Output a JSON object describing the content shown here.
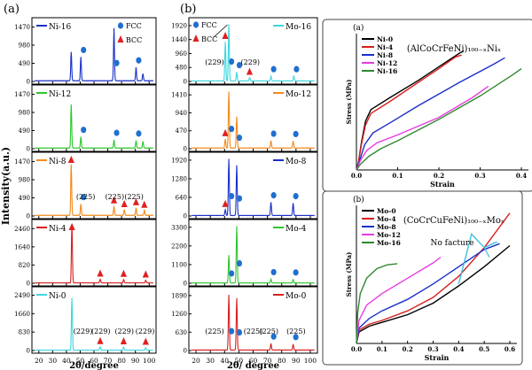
{
  "chart_data": [
    {
      "id": "xrd-ni",
      "type": "line",
      "panel_label": "(a)",
      "xlabel": "2θ/degree",
      "ylabel": "Intensity(a.u.)",
      "xlim": [
        15,
        105
      ],
      "xticks": [
        20,
        30,
        40,
        50,
        60,
        70,
        80,
        90,
        100
      ],
      "legend_fcc": "FCC",
      "legend_bcc": "BCC",
      "colors": {
        "Ni-16": "#1a2fc9",
        "Ni-12": "#2ec72e",
        "Ni-8": "#f28a1a",
        "Ni-4": "#d62020",
        "Ni-0": "#3dd6dd"
      },
      "subplots": [
        {
          "name": "Ni-16",
          "ylim": [
            0,
            1650
          ],
          "yticks": [
            0,
            490,
            980,
            1470
          ],
          "peaks": [
            [
              43.5,
              780
            ],
            [
              50.5,
              640
            ],
            [
              74.5,
              1420
            ],
            [
              90.5,
              360
            ],
            [
              95.5,
              190
            ]
          ],
          "fcc_marks": [
            50.5,
            74.5,
            90.5
          ],
          "bcc_marks": [],
          "annotations": []
        },
        {
          "name": "Ni-12",
          "ylim": [
            0,
            1650
          ],
          "yticks": [
            0,
            490,
            980,
            1470
          ],
          "peaks": [
            [
              43.5,
              1180
            ],
            [
              50.5,
              300
            ],
            [
              74.5,
              220
            ],
            [
              90.5,
              200
            ],
            [
              95.5,
              180
            ]
          ],
          "fcc_marks": [
            50.5,
            74.5,
            90.5
          ],
          "bcc_marks": [],
          "annotations": []
        },
        {
          "name": "Ni-8",
          "ylim": [
            0,
            1650
          ],
          "yticks": [
            0,
            490,
            980,
            1470
          ],
          "peaks": [
            [
              43.5,
              1380
            ],
            [
              50.5,
              300
            ],
            [
              74.5,
              250
            ],
            [
              82,
              150
            ],
            [
              90.5,
              200
            ],
            [
              96.5,
              130
            ]
          ],
          "fcc_marks": [
            50.5
          ],
          "bcc_marks": [
            43.5,
            74.5,
            82,
            90.5,
            96.5
          ],
          "annotations": [
            {
              "text": "(225)",
              "x": 54
            },
            {
              "text": "(225)",
              "x": 75
            },
            {
              "text": "(225)",
              "x": 89
            }
          ]
        },
        {
          "name": "Ni-4",
          "ylim": [
            0,
            2750
          ],
          "yticks": [
            0,
            820,
            1640,
            2460
          ],
          "peaks": [
            [
              44,
              2650
            ],
            [
              64.5,
              160
            ],
            [
              81.5,
              150
            ],
            [
              97.5,
              120
            ]
          ],
          "fcc_marks": [],
          "bcc_marks": [
            44,
            64.5,
            81.5,
            97.5
          ],
          "annotations": []
        },
        {
          "name": "Ni-0",
          "ylim": [
            0,
            2750
          ],
          "yticks": [
            0,
            830,
            1660,
            2490
          ],
          "peaks": [
            [
              44,
              2350
            ],
            [
              64.5,
              150
            ],
            [
              81.5,
              140
            ],
            [
              97.5,
              120
            ]
          ],
          "fcc_marks": [],
          "bcc_marks": [
            64.5,
            81.5,
            97.5
          ],
          "annotations": [
            {
              "text": "(229)",
              "x": 52
            },
            {
              "text": "(229)",
              "x": 65
            },
            {
              "text": "(229)",
              "x": 82
            },
            {
              "text": "(229)",
              "x": 97
            }
          ]
        }
      ]
    },
    {
      "id": "xrd-mo",
      "type": "line",
      "panel_label": "(b)",
      "xlabel": "2θ/ degree",
      "xlim": [
        15,
        105
      ],
      "xticks": [
        20,
        30,
        40,
        50,
        60,
        70,
        80,
        90,
        100
      ],
      "legend_fcc": "FCC",
      "legend_bcc": "BCC",
      "colors": {
        "Mo-16": "#3dd6dd",
        "Mo-12": "#f28a1a",
        "Mo-8": "#1a2fc9",
        "Mo-4": "#2ec72e",
        "Mo-0": "#d62020"
      },
      "subplots": [
        {
          "name": "Mo-16",
          "ylim": [
            0,
            2100
          ],
          "yticks": [
            0,
            480,
            960,
            1440,
            1920
          ],
          "peaks": [
            [
              40.5,
              1350
            ],
            [
              43,
              1950
            ],
            [
              48.5,
              300
            ],
            [
              57.5,
              120
            ],
            [
              72.5,
              160
            ],
            [
              88.5,
              160
            ]
          ],
          "fcc_marks": [
            43,
            48.5,
            72.5,
            88.5
          ],
          "bcc_marks": [
            40.5,
            57.5
          ],
          "annotations": [
            {
              "text": "(229)",
              "x": 33
            },
            {
              "text": "(229)",
              "x": 58
            }
          ]
        },
        {
          "name": "Mo-12",
          "ylim": [
            0,
            1600
          ],
          "yticks": [
            0,
            470,
            940,
            1410
          ],
          "peaks": [
            [
              40.5,
              240
            ],
            [
              43,
              1480
            ],
            [
              48.5,
              820
            ],
            [
              72.5,
              190
            ],
            [
              88,
              180
            ]
          ],
          "fcc_marks": [
            43,
            48.5,
            72.5,
            88
          ],
          "bcc_marks": [
            40.5
          ],
          "annotations": []
        },
        {
          "name": "Mo-8",
          "ylim": [
            0,
            2100
          ],
          "yticks": [
            0,
            640,
            1280,
            1920
          ],
          "peaks": [
            [
              40.5,
              200
            ],
            [
              43,
              1950
            ],
            [
              48.5,
              1720
            ],
            [
              72.5,
              450
            ],
            [
              88,
              420
            ]
          ],
          "fcc_marks": [
            43,
            48.5,
            72.5,
            88
          ],
          "bcc_marks": [
            40.5
          ],
          "annotations": []
        },
        {
          "name": "Mo-4",
          "ylim": [
            0,
            3600
          ],
          "yticks": [
            0,
            1100,
            2200,
            3300
          ],
          "peaks": [
            [
              43,
              1650
            ],
            [
              48.5,
              3350
            ],
            [
              72.5,
              220
            ],
            [
              88,
              200
            ]
          ],
          "fcc_marks": [
            43,
            48.5,
            72.5,
            88
          ],
          "bcc_marks": [],
          "annotations": []
        },
        {
          "name": "Mo-0",
          "ylim": [
            0,
            2100
          ],
          "yticks": [
            0,
            630,
            1260,
            1890
          ],
          "peaks": [
            [
              43,
              1900
            ],
            [
              48.5,
              1780
            ],
            [
              72.5,
              220
            ],
            [
              88,
              200
            ]
          ],
          "fcc_marks": [
            43,
            48.5,
            72.5,
            88
          ],
          "bcc_marks": [],
          "annotations": [
            {
              "text": "(225)",
              "x": 33
            },
            {
              "text": "(225)",
              "x": 60
            },
            {
              "text": "(225)",
              "x": 71
            },
            {
              "text": "(225)",
              "x": 90
            }
          ]
        }
      ]
    },
    {
      "id": "stress-ni",
      "type": "line",
      "panel_label": "(a)",
      "title": "(AlCoCrFeNi)₁₀₀₋ₓNiₓ",
      "xlabel": "Strain",
      "ylabel": "Stress (MPa)",
      "xlim": [
        0,
        0.4
      ],
      "xticks": [
        0.0,
        0.1,
        0.2,
        0.3,
        0.4
      ],
      "ylim": [
        0,
        3500
      ],
      "series": [
        {
          "name": "Ni-0",
          "color": "#000000",
          "points": [
            [
              0,
              0
            ],
            [
              0.005,
              200
            ],
            [
              0.012,
              700
            ],
            [
              0.022,
              1250
            ],
            [
              0.035,
              1550
            ],
            [
              0.08,
              1850
            ],
            [
              0.15,
              2300
            ],
            [
              0.2,
              2650
            ],
            [
              0.25,
              3000
            ],
            [
              0.26,
              3050
            ]
          ]
        },
        {
          "name": "Ni-4",
          "color": "#d62020",
          "points": [
            [
              0,
              0
            ],
            [
              0.005,
              200
            ],
            [
              0.012,
              650
            ],
            [
              0.022,
              1150
            ],
            [
              0.035,
              1450
            ],
            [
              0.08,
              1750
            ],
            [
              0.15,
              2250
            ],
            [
              0.2,
              2600
            ],
            [
              0.24,
              2900
            ],
            [
              0.255,
              2950
            ]
          ]
        },
        {
          "name": "Ni-8",
          "color": "#1a2fc9",
          "points": [
            [
              0,
              0
            ],
            [
              0.008,
              250
            ],
            [
              0.02,
              650
            ],
            [
              0.04,
              950
            ],
            [
              0.08,
              1200
            ],
            [
              0.15,
              1650
            ],
            [
              0.25,
              2250
            ],
            [
              0.33,
              2700
            ],
            [
              0.36,
              2880
            ]
          ]
        },
        {
          "name": "Ni-12",
          "color": "#e83be0",
          "points": [
            [
              0,
              0
            ],
            [
              0.01,
              250
            ],
            [
              0.025,
              500
            ],
            [
              0.05,
              700
            ],
            [
              0.1,
              900
            ],
            [
              0.2,
              1350
            ],
            [
              0.28,
              1850
            ],
            [
              0.32,
              2150
            ]
          ]
        },
        {
          "name": "Ni-16",
          "color": "#2e8a2e",
          "points": [
            [
              0,
              0
            ],
            [
              0.01,
              150
            ],
            [
              0.03,
              350
            ],
            [
              0.06,
              550
            ],
            [
              0.1,
              750
            ],
            [
              0.2,
              1300
            ],
            [
              0.3,
              1900
            ],
            [
              0.38,
              2450
            ],
            [
              0.4,
              2600
            ]
          ]
        }
      ]
    },
    {
      "id": "stress-mo",
      "type": "line",
      "panel_label": "(b)",
      "title": "(CoCrCuFeNi)₁₀₀₋ₓMoₓ",
      "xlabel": "Strain",
      "ylabel": "Stress (MPa)",
      "xlim": [
        0,
        0.6
      ],
      "xticks": [
        0.0,
        0.1,
        0.2,
        0.3,
        0.4,
        0.5,
        0.6
      ],
      "ylim": [
        0,
        3600
      ],
      "annotation": "No facture",
      "series": [
        {
          "name": "Mo-0",
          "color": "#000000",
          "points": [
            [
              0,
              0
            ],
            [
              0.01,
              300
            ],
            [
              0.05,
              450
            ],
            [
              0.1,
              550
            ],
            [
              0.2,
              750
            ],
            [
              0.3,
              1050
            ],
            [
              0.4,
              1500
            ],
            [
              0.5,
              2000
            ],
            [
              0.6,
              2550
            ]
          ]
        },
        {
          "name": "Mo-4",
          "color": "#d62020",
          "points": [
            [
              0,
              0
            ],
            [
              0.01,
              350
            ],
            [
              0.05,
              500
            ],
            [
              0.1,
              600
            ],
            [
              0.2,
              850
            ],
            [
              0.3,
              1200
            ],
            [
              0.4,
              1750
            ],
            [
              0.5,
              2500
            ],
            [
              0.6,
              3400
            ]
          ]
        },
        {
          "name": "Mo-8",
          "color": "#1a2fc9",
          "points": [
            [
              0,
              0
            ],
            [
              0.01,
              400
            ],
            [
              0.05,
              650
            ],
            [
              0.1,
              850
            ],
            [
              0.2,
              1150
            ],
            [
              0.3,
              1550
            ],
            [
              0.4,
              2000
            ],
            [
              0.5,
              2450
            ],
            [
              0.56,
              2600
            ]
          ]
        },
        {
          "name": "Mo-12",
          "color": "#e83be0",
          "points": [
            [
              0,
              0
            ],
            [
              0.01,
              600
            ],
            [
              0.04,
              1000
            ],
            [
              0.1,
              1300
            ],
            [
              0.2,
              1700
            ],
            [
              0.3,
              2100
            ],
            [
              0.33,
              2250
            ]
          ]
        },
        {
          "name": "Mo-16",
          "color": "#2e8a2e",
          "points": [
            [
              0,
              0
            ],
            [
              0.005,
              800
            ],
            [
              0.015,
              1300
            ],
            [
              0.04,
              1700
            ],
            [
              0.08,
              1950
            ],
            [
              0.12,
              2050
            ],
            [
              0.16,
              2080
            ]
          ]
        },
        {
          "name": "",
          "color": "#3dbfe0",
          "points": [
            [
              0.4,
              1550
            ],
            [
              0.45,
              2850
            ],
            [
              0.5,
              2500
            ],
            [
              0.55,
              2650
            ]
          ]
        }
      ]
    }
  ]
}
